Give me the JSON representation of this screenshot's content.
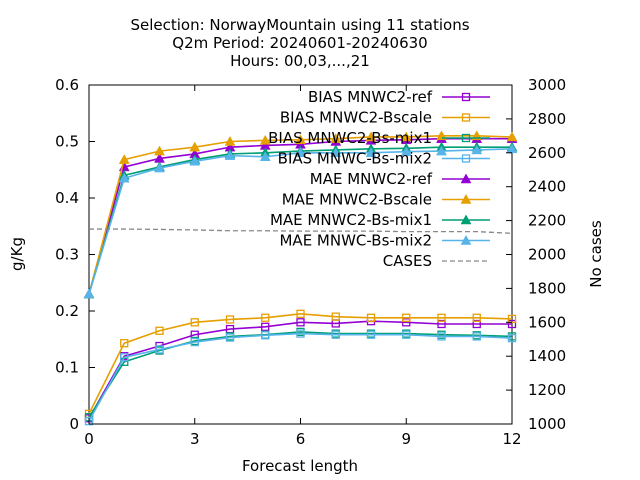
{
  "chart_data": {
    "type": "line",
    "title_lines": [
      "Selection: NorwayMountain using    11 stations",
      "Q2m   Period: 20240601-20240630",
      "Hours: 00,03,...,21"
    ],
    "xlabel": "Forecast length",
    "ylabel": "g/Kg",
    "y2label": "No cases",
    "xlim": [
      0,
      12
    ],
    "ylim": [
      0,
      0.6
    ],
    "y2lim": [
      1000,
      3000
    ],
    "xticks": [
      0,
      3,
      6,
      9,
      12
    ],
    "yticks": [
      0,
      0.1,
      0.2,
      0.3,
      0.4,
      0.5,
      0.6
    ],
    "y2ticks": [
      1000,
      1200,
      1400,
      1600,
      1800,
      2000,
      2200,
      2400,
      2600,
      2800,
      3000
    ],
    "legend_position": "top-right",
    "x": [
      0,
      1,
      2,
      3,
      4,
      5,
      6,
      7,
      8,
      9,
      10,
      11,
      12
    ],
    "series": [
      {
        "name": "BIAS MNWC2-ref",
        "color": "#9400d3",
        "marker": "square-open",
        "axis": "y",
        "values": [
          0.01,
          0.12,
          0.138,
          0.158,
          0.168,
          0.172,
          0.18,
          0.178,
          0.182,
          0.18,
          0.177,
          0.177,
          0.177
        ]
      },
      {
        "name": "BIAS MNWC2-Bscale",
        "color": "#e69f00",
        "marker": "square-open",
        "axis": "y",
        "values": [
          0.018,
          0.143,
          0.165,
          0.18,
          0.185,
          0.188,
          0.195,
          0.19,
          0.188,
          0.188,
          0.188,
          0.188,
          0.186
        ]
      },
      {
        "name": "BIAS MNWC2-Bs-mix1",
        "color": "#009e73",
        "marker": "square-open",
        "axis": "y",
        "values": [
          0.012,
          0.11,
          0.13,
          0.147,
          0.155,
          0.158,
          0.163,
          0.16,
          0.16,
          0.16,
          0.158,
          0.157,
          0.155
        ]
      },
      {
        "name": "BIAS MNWC-Bs-mix2",
        "color": "#56b4e9",
        "marker": "square-open",
        "axis": "y",
        "values": [
          0.005,
          0.118,
          0.132,
          0.145,
          0.153,
          0.157,
          0.16,
          0.158,
          0.158,
          0.158,
          0.155,
          0.155,
          0.152
        ]
      },
      {
        "name": "MAE MNWC2-ref",
        "color": "#9400d3",
        "marker": "triangle-filled",
        "axis": "y",
        "values": [
          0.23,
          0.455,
          0.47,
          0.478,
          0.49,
          0.493,
          0.495,
          0.5,
          0.502,
          0.503,
          0.505,
          0.505,
          0.505
        ]
      },
      {
        "name": "MAE MNWC2-Bscale",
        "color": "#e69f00",
        "marker": "triangle-filled",
        "axis": "y",
        "values": [
          0.23,
          0.468,
          0.483,
          0.49,
          0.5,
          0.502,
          0.503,
          0.505,
          0.508,
          0.508,
          0.51,
          0.51,
          0.508
        ]
      },
      {
        "name": "MAE MNWC2-Bs-mix1",
        "color": "#009e73",
        "marker": "triangle-filled",
        "axis": "y",
        "values": [
          0.23,
          0.44,
          0.455,
          0.468,
          0.478,
          0.48,
          0.483,
          0.485,
          0.487,
          0.488,
          0.49,
          0.49,
          0.49
        ]
      },
      {
        "name": "MAE MNWC-Bs-mix2",
        "color": "#56b4e9",
        "marker": "triangle-filled",
        "axis": "y",
        "values": [
          0.23,
          0.435,
          0.453,
          0.465,
          0.475,
          0.473,
          0.48,
          0.48,
          0.48,
          0.482,
          0.483,
          0.485,
          0.487
        ]
      },
      {
        "name": "CASES",
        "color": "#888888",
        "marker": "none",
        "dash": true,
        "axis": "y2",
        "values": [
          2150,
          2150,
          2148,
          2145,
          2140,
          2140,
          2138,
          2138,
          2138,
          2135,
          2135,
          2135,
          2125
        ]
      }
    ]
  }
}
